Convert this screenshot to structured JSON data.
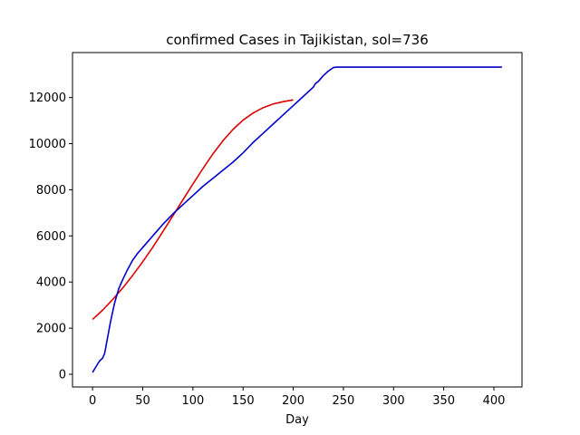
{
  "chart_data": {
    "type": "line",
    "title": "confirmed Cases in Tajikistan, sol=736",
    "xlabel": "Day",
    "ylabel": "",
    "xlim": [
      -20,
      428
    ],
    "ylim": [
      -550,
      13950
    ],
    "xticks": [
      0,
      50,
      100,
      150,
      200,
      250,
      300,
      350,
      400
    ],
    "yticks": [
      0,
      2000,
      4000,
      6000,
      8000,
      10000,
      12000
    ],
    "grid": false,
    "series": [
      {
        "color": "#dd0000",
        "x": [
          0,
          10,
          20,
          30,
          40,
          50,
          60,
          70,
          80,
          90,
          100,
          110,
          120,
          130,
          140,
          150,
          160,
          170,
          180,
          190,
          200
        ],
        "y": [
          2380,
          2780,
          3240,
          3740,
          4290,
          4880,
          5510,
          6180,
          6870,
          7560,
          8250,
          8920,
          9560,
          10130,
          10620,
          11020,
          11330,
          11560,
          11720,
          11820,
          11900
        ]
      },
      {
        "color": "#0000cc",
        "x": [
          0,
          3,
          7,
          10,
          12,
          15,
          18,
          22,
          26,
          30,
          35,
          40,
          45,
          50,
          55,
          58,
          60,
          65,
          70,
          80,
          90,
          100,
          110,
          120,
          130,
          140,
          150,
          160,
          170,
          180,
          190,
          200,
          210,
          220,
          222,
          225,
          230,
          235,
          240,
          243,
          250,
          300,
          350,
          408
        ],
        "y": [
          80,
          300,
          580,
          700,
          900,
          1600,
          2300,
          3100,
          3700,
          4100,
          4550,
          4950,
          5250,
          5500,
          5750,
          5900,
          6000,
          6250,
          6500,
          6950,
          7350,
          7750,
          8150,
          8500,
          8850,
          9200,
          9600,
          10050,
          10450,
          10850,
          11250,
          11650,
          12050,
          12450,
          12600,
          12700,
          12950,
          13150,
          13300,
          13320,
          13320,
          13320,
          13320,
          13320
        ]
      }
    ]
  }
}
